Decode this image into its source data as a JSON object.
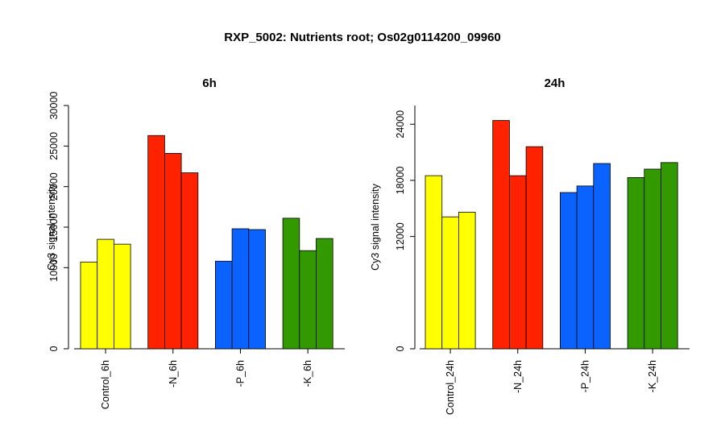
{
  "title": "RXP_5002: Nutrients root; Os02g0114200_09960",
  "colors": {
    "Control": "#ffff00",
    "N": "#ff2200",
    "P": "#0b63ff",
    "K": "#339900"
  },
  "chart_data": [
    {
      "type": "bar",
      "title": "6h",
      "ylabel": "Cy3 signal intensity",
      "ylim": [
        0,
        30000
      ],
      "yticks": [
        0,
        10000,
        15000,
        20000,
        25000,
        30000
      ],
      "ytick_labels": [
        "0",
        "10000",
        "15000",
        "20000",
        "25000",
        "30000"
      ],
      "groups": [
        {
          "label": "Control_6h",
          "color": "#ffff00",
          "values": [
            10700,
            13500,
            12900
          ]
        },
        {
          "label": "-N_6h",
          "color": "#ff2200",
          "values": [
            26300,
            24100,
            21700
          ]
        },
        {
          "label": "-P_6h",
          "color": "#0b63ff",
          "values": [
            10800,
            14800,
            14700
          ]
        },
        {
          "label": "-K_6h",
          "color": "#339900",
          "values": [
            16100,
            12100,
            13600
          ]
        }
      ]
    },
    {
      "type": "bar",
      "title": "24h",
      "ylabel": "Cy3 signal intensity",
      "ylim": [
        0,
        26000
      ],
      "yticks": [
        0,
        12000,
        18000,
        24000
      ],
      "ytick_labels": [
        "0",
        "12000",
        "18000",
        "24000"
      ],
      "groups": [
        {
          "label": "Control_24h",
          "color": "#ffff00",
          "values": [
            18500,
            14100,
            14600
          ]
        },
        {
          "label": "-N_24h",
          "color": "#ff2200",
          "values": [
            24400,
            18500,
            21600
          ]
        },
        {
          "label": "-P_24h",
          "color": "#0b63ff",
          "values": [
            16700,
            17400,
            19800
          ]
        },
        {
          "label": "-K_24h",
          "color": "#339900",
          "values": [
            18300,
            19200,
            19900
          ]
        }
      ]
    }
  ]
}
